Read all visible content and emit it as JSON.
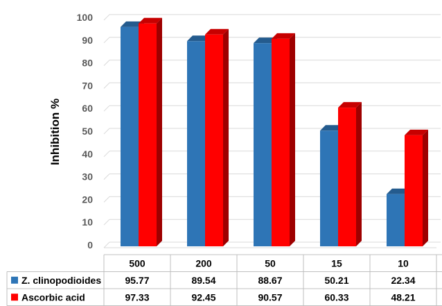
{
  "chart_data": {
    "type": "bar",
    "style": "3d-clustered-column-with-data-table",
    "title": "",
    "xlabel": "",
    "ylabel": "Inhibition %",
    "ylim": [
      0,
      100
    ],
    "ytick_step": 10,
    "grid": true,
    "legend": "data table, left of rows",
    "categories": [
      "500",
      "200",
      "50",
      "15",
      "10"
    ],
    "series": [
      {
        "name": "Z. clinopodioides",
        "color": "#2E75B6",
        "values": [
          95.77,
          89.54,
          88.67,
          50.21,
          22.34
        ],
        "labels": [
          "95.77",
          "89.54",
          "88.67",
          "50.21",
          "22.34"
        ]
      },
      {
        "name": "Ascorbic acid",
        "color": "#FF0000",
        "values": [
          97.33,
          92.45,
          90.57,
          60.33,
          48.21
        ],
        "labels": [
          "97.33",
          "92.45",
          "90.57",
          "60.33",
          "48.21"
        ]
      }
    ]
  }
}
